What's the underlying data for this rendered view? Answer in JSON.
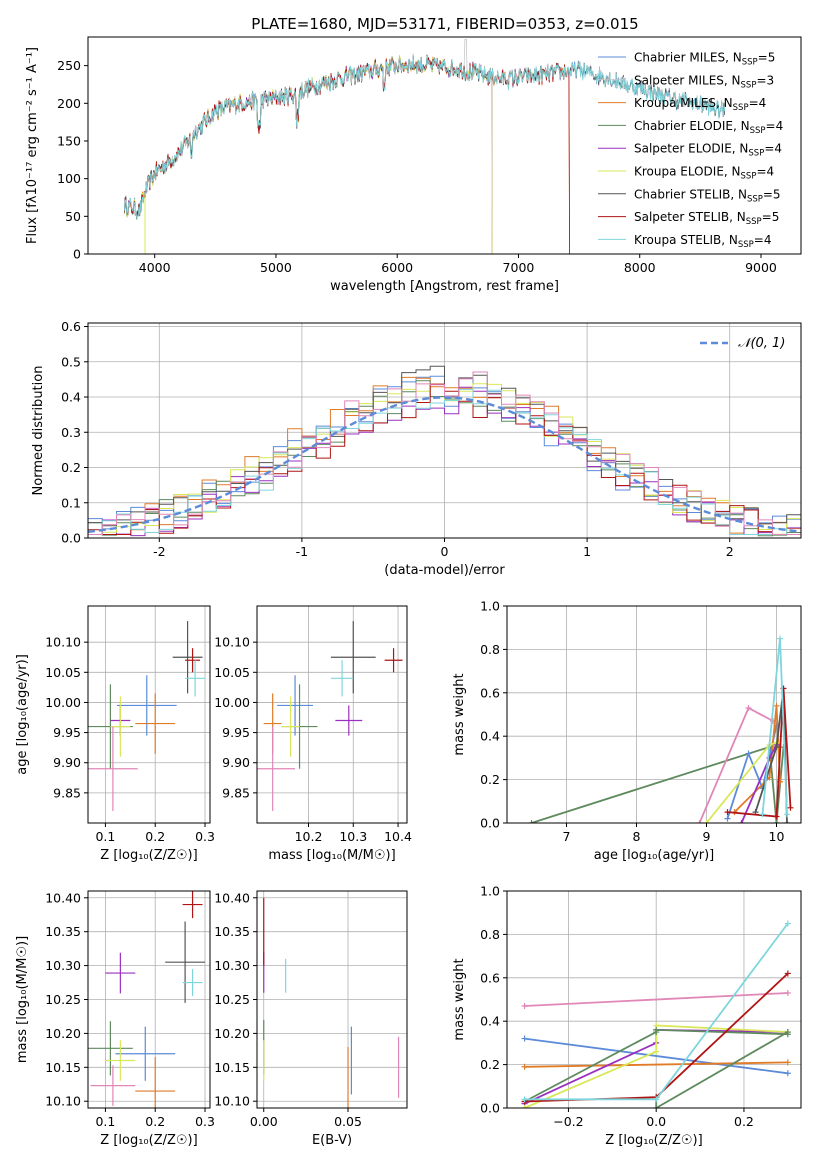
{
  "title": "PLATE=1680, MJD=53171, FIBERID=0353, z=0.015",
  "colors": {
    "chabrier_miles": "#5b8bd9",
    "salpeter_miles": "#c7c7c7",
    "kroupa_miles": "#e07b28",
    "chabrier_elodie": "#5e8a5e",
    "salpeter_elodie": "#9b30c0",
    "kroupa_elodie": "#d9e85a",
    "chabrier_stelib": "#555555",
    "salpeter_stelib": "#b01515",
    "kroupa_stelib": "#7ed6dc",
    "pink": "#e087b8",
    "normal_curve": "#5b8bd9",
    "grid": "#b0b0b0"
  },
  "chart_data": [
    {
      "id": "spectrum",
      "type": "line",
      "xlabel": "wavelength [Angstrom, rest frame]",
      "ylabel": "Flux [fλ10⁻¹⁷ erg cm⁻² s⁻¹ A⁻¹]",
      "xlim": [
        3450,
        9330
      ],
      "ylim": [
        0,
        288
      ],
      "xticks": [
        4000,
        5000,
        6000,
        7000,
        8000,
        9000
      ],
      "yticks": [
        0,
        50,
        100,
        150,
        200,
        250
      ],
      "grid": false,
      "legend_position": "top-right",
      "continuum": [
        [
          3750,
          65
        ],
        [
          3880,
          58
        ],
        [
          3920,
          82
        ],
        [
          4000,
          108
        ],
        [
          4100,
          120
        ],
        [
          4200,
          135
        ],
        [
          4350,
          165
        ],
        [
          4500,
          190
        ],
        [
          4700,
          200
        ],
        [
          4900,
          205
        ],
        [
          5100,
          210
        ],
        [
          5300,
          222
        ],
        [
          5500,
          232
        ],
        [
          5700,
          240
        ],
        [
          5900,
          248
        ],
        [
          6100,
          252
        ],
        [
          6300,
          250
        ],
        [
          6500,
          246
        ],
        [
          6700,
          238
        ],
        [
          6900,
          232
        ],
        [
          7100,
          236
        ],
        [
          7300,
          240
        ],
        [
          7500,
          244
        ],
        [
          7700,
          235
        ],
        [
          7900,
          225
        ],
        [
          8100,
          215
        ],
        [
          8300,
          205
        ],
        [
          8500,
          198
        ],
        [
          8700,
          190
        ]
      ],
      "series": [
        {
          "name": "Chabrier MILES, N",
          "sub": "SSP",
          "eq": "=5",
          "color": "#5b8bd9",
          "end": 8700
        },
        {
          "name": "Salpeter MILES, N",
          "sub": "SSP",
          "eq": "=3",
          "color": "#c7c7c7",
          "end": 8700
        },
        {
          "name": "Kroupa MILES, N",
          "sub": "SSP",
          "eq": "=4",
          "color": "#e07b28",
          "end": 7420
        },
        {
          "name": "Chabrier ELODIE, N",
          "sub": "SSP",
          "eq": "=4",
          "color": "#5e8a5e",
          "end": 6780
        },
        {
          "name": "Salpeter ELODIE, N",
          "sub": "SSP",
          "eq": "=4",
          "color": "#9b30c0",
          "end": 6780
        },
        {
          "name": "Kroupa ELODIE, N",
          "sub": "SSP",
          "eq": "=4",
          "color": "#d9e85a",
          "end": 6780
        },
        {
          "name": "Chabrier STELIB, N",
          "sub": "SSP",
          "eq": "=5",
          "color": "#555555",
          "end": 8700
        },
        {
          "name": "Salpeter STELIB, N",
          "sub": "SSP",
          "eq": "=5",
          "color": "#b01515",
          "end": 7420
        },
        {
          "name": "Kroupa STELIB, N",
          "sub": "SSP",
          "eq": "=4",
          "color": "#7ed6dc",
          "end": 8700
        }
      ]
    },
    {
      "id": "residuals",
      "type": "line",
      "xlabel": "(data-model)/error",
      "ylabel": "Normed distribution",
      "xlim": [
        -2.5,
        2.5
      ],
      "ylim": [
        0,
        0.61
      ],
      "xticks": [
        -2,
        -1,
        0,
        1,
        2
      ],
      "yticks": [
        0.0,
        0.1,
        0.2,
        0.3,
        0.4,
        0.5,
        0.6
      ],
      "grid": true,
      "legend": "𝒩(0, 1)",
      "legend_position": "top-right",
      "bin_width": 0.1,
      "histogram_colors": [
        "#5b8bd9",
        "#e07b28",
        "#5e8a5e",
        "#9b30c0",
        "#d9e85a",
        "#555555",
        "#b01515",
        "#7ed6dc",
        "#e087b8"
      ]
    },
    {
      "id": "age_vs_Z",
      "type": "scatter",
      "xlabel": "Z [log₁₀(Z/Z☉)]",
      "ylabel": "age  [log₁₀(age/yr)]",
      "xlim": [
        0.065,
        0.31
      ],
      "ylim": [
        9.8,
        10.16
      ],
      "xticks": [
        0.1,
        0.2,
        0.3
      ],
      "yticks": [
        9.85,
        9.9,
        9.95,
        10.0,
        10.05,
        10.1
      ],
      "grid": true,
      "points": [
        {
          "color": "#5b8bd9",
          "x": 0.183,
          "y": 9.995,
          "xe": 0.06,
          "ye": 0.05
        },
        {
          "color": "#e07b28",
          "x": 0.2,
          "y": 9.965,
          "xe": 0.04,
          "ye": 0.05
        },
        {
          "color": "#5e8a5e",
          "x": 0.11,
          "y": 9.96,
          "xe": 0.045,
          "ye": 0.07
        },
        {
          "color": "#9b30c0",
          "x": 0.13,
          "y": 9.97,
          "xe": 0.02,
          "ye": 0.025
        },
        {
          "color": "#d9e85a",
          "x": 0.13,
          "y": 9.96,
          "xe": 0.02,
          "ye": 0.05
        },
        {
          "color": "#555555",
          "x": 0.265,
          "y": 10.075,
          "xe": 0.03,
          "ye": 0.06
        },
        {
          "color": "#b01515",
          "x": 0.275,
          "y": 10.07,
          "xe": 0.015,
          "ye": 0.02
        },
        {
          "color": "#7ed6dc",
          "x": 0.28,
          "y": 10.04,
          "xe": 0.02,
          "ye": 0.03
        },
        {
          "color": "#e087b8",
          "x": 0.115,
          "y": 9.89,
          "xe": 0.05,
          "ye": 0.07
        }
      ]
    },
    {
      "id": "age_vs_mass",
      "type": "scatter",
      "xlabel": "mass [log₁₀(M/M☉)]",
      "ylabel": "",
      "xlim": [
        10.085,
        10.42
      ],
      "ylim": [
        9.8,
        10.16
      ],
      "xticks": [
        10.2,
        10.3,
        10.4
      ],
      "yticks": [
        9.85,
        9.9,
        9.95,
        10.0,
        10.05,
        10.1
      ],
      "grid": true,
      "points": [
        {
          "color": "#5b8bd9",
          "x": 10.17,
          "y": 9.995,
          "xe": 0.04,
          "ye": 0.05
        },
        {
          "color": "#e07b28",
          "x": 10.12,
          "y": 9.965,
          "xe": 0.02,
          "ye": 0.05
        },
        {
          "color": "#5e8a5e",
          "x": 10.18,
          "y": 9.96,
          "xe": 0.04,
          "ye": 0.07
        },
        {
          "color": "#9b30c0",
          "x": 10.29,
          "y": 9.97,
          "xe": 0.03,
          "ye": 0.025
        },
        {
          "color": "#d9e85a",
          "x": 10.16,
          "y": 9.96,
          "xe": 0.02,
          "ye": 0.05
        },
        {
          "color": "#555555",
          "x": 10.3,
          "y": 10.075,
          "xe": 0.05,
          "ye": 0.06
        },
        {
          "color": "#b01515",
          "x": 10.39,
          "y": 10.07,
          "xe": 0.02,
          "ye": 0.02
        },
        {
          "color": "#7ed6dc",
          "x": 10.275,
          "y": 10.04,
          "xe": 0.025,
          "ye": 0.03
        },
        {
          "color": "#e087b8",
          "x": 10.12,
          "y": 9.89,
          "xe": 0.05,
          "ye": 0.07
        }
      ]
    },
    {
      "id": "weight_vs_age",
      "type": "line",
      "xlabel": "age  [log₁₀(age/yr)]",
      "ylabel": "mass weight",
      "xlim": [
        6.15,
        10.35
      ],
      "ylim": [
        0,
        1.0
      ],
      "xticks": [
        7,
        8,
        9,
        10
      ],
      "yticks": [
        0.0,
        0.2,
        0.4,
        0.6,
        0.8,
        1.0
      ],
      "grid": true,
      "series": [
        {
          "color": "#5e8a5e",
          "points": [
            [
              6.5,
              0.0
            ],
            [
              9.9,
              0.35
            ],
            [
              10.0,
              0.0
            ],
            [
              10.1,
              0.35
            ]
          ]
        },
        {
          "color": "#e087b8",
          "points": [
            [
              8.9,
              0.0
            ],
            [
              9.6,
              0.53
            ],
            [
              9.95,
              0.47
            ]
          ]
        },
        {
          "color": "#5b8bd9",
          "points": [
            [
              9.3,
              0.02
            ],
            [
              9.6,
              0.32
            ],
            [
              9.8,
              0.16
            ],
            [
              10.0,
              0.45
            ]
          ]
        },
        {
          "color": "#e07b28",
          "points": [
            [
              9.4,
              0.05
            ],
            [
              9.9,
              0.21
            ],
            [
              10.0,
              0.54
            ],
            [
              10.05,
              0.19
            ]
          ]
        },
        {
          "color": "#9b30c0",
          "points": [
            [
              9.5,
              0.0
            ],
            [
              9.9,
              0.3
            ],
            [
              10.0,
              0.36
            ]
          ]
        },
        {
          "color": "#d9e85a",
          "points": [
            [
              9.0,
              0.0
            ],
            [
              9.9,
              0.36
            ],
            [
              10.0,
              0.37
            ]
          ]
        },
        {
          "color": "#555555",
          "points": [
            [
              9.7,
              0.05
            ],
            [
              10.0,
              0.35
            ],
            [
              10.1,
              0.62
            ],
            [
              10.15,
              0.0
            ]
          ]
        },
        {
          "color": "#b01515",
          "points": [
            [
              9.3,
              0.05
            ],
            [
              10.0,
              0.03
            ],
            [
              10.1,
              0.62
            ],
            [
              10.2,
              0.07
            ]
          ]
        },
        {
          "color": "#7ed6dc",
          "points": [
            [
              9.8,
              0.04
            ],
            [
              10.05,
              0.85
            ],
            [
              10.15,
              0.04
            ]
          ]
        }
      ]
    },
    {
      "id": "mass_vs_Z",
      "type": "scatter",
      "xlabel": "Z [log₁₀(Z/Z☉)]",
      "ylabel": "mass [log₁₀(M/M☉)]",
      "xlim": [
        0.065,
        0.31
      ],
      "ylim": [
        10.09,
        10.41
      ],
      "xticks": [
        0.1,
        0.2,
        0.3
      ],
      "yticks": [
        10.1,
        10.15,
        10.2,
        10.25,
        10.3,
        10.35,
        10.4
      ],
      "grid": true,
      "points": [
        {
          "color": "#5b8bd9",
          "x": 0.18,
          "y": 10.17,
          "xe": 0.06,
          "ye": 0.04
        },
        {
          "color": "#e07b28",
          "x": 0.2,
          "y": 10.115,
          "xe": 0.04,
          "ye": 0.05
        },
        {
          "color": "#5e8a5e",
          "x": 0.11,
          "y": 10.178,
          "xe": 0.045,
          "ye": 0.04
        },
        {
          "color": "#9b30c0",
          "x": 0.13,
          "y": 10.289,
          "xe": 0.03,
          "ye": 0.03
        },
        {
          "color": "#d9e85a",
          "x": 0.13,
          "y": 10.16,
          "xe": 0.03,
          "ye": 0.03
        },
        {
          "color": "#555555",
          "x": 0.26,
          "y": 10.305,
          "xe": 0.04,
          "ye": 0.06
        },
        {
          "color": "#b01515",
          "x": 0.275,
          "y": 10.39,
          "xe": 0.02,
          "ye": 0.02
        },
        {
          "color": "#7ed6dc",
          "x": 0.275,
          "y": 10.275,
          "xe": 0.02,
          "ye": 0.02
        },
        {
          "color": "#e087b8",
          "x": 0.115,
          "y": 10.123,
          "xe": 0.045,
          "ye": 0.03
        }
      ]
    },
    {
      "id": "mass_vs_ebv",
      "type": "scatter",
      "xlabel": "E(B-V)",
      "ylabel": "",
      "xlim": [
        -0.004,
        0.085
      ],
      "ylim": [
        10.09,
        10.41
      ],
      "xticks": [
        0.0,
        0.05
      ],
      "yticks": [
        10.1,
        10.15,
        10.2,
        10.25,
        10.3,
        10.35,
        10.4
      ],
      "grid": true,
      "points": [
        {
          "color": "#5b8bd9",
          "x": 0.052,
          "y": 10.16,
          "xe": 0,
          "ye": 0.05
        },
        {
          "color": "#e07b28",
          "x": 0.05,
          "y": 10.13,
          "xe": 0,
          "ye": 0.05
        },
        {
          "color": "#5e8a5e",
          "x": 0.0,
          "y": 10.18,
          "xe": 0,
          "ye": 0.04
        },
        {
          "color": "#9b30c0",
          "x": 0.0,
          "y": 10.29,
          "xe": 0,
          "ye": 0.03
        },
        {
          "color": "#d9e85a",
          "x": 0.0,
          "y": 10.16,
          "xe": 0,
          "ye": 0.03
        },
        {
          "color": "#b01515",
          "x": 0.0,
          "y": 10.35,
          "xe": 0,
          "ye": 0.05
        },
        {
          "color": "#7ed6dc",
          "x": 0.013,
          "y": 10.285,
          "xe": 0,
          "ye": 0.025
        },
        {
          "color": "#e087b8",
          "x": 0.08,
          "y": 10.15,
          "xe": 0,
          "ye": 0.045
        }
      ]
    },
    {
      "id": "weight_vs_Z",
      "type": "line",
      "xlabel": "Z [log₁₀(Z/Z☉)]",
      "ylabel": "mass weight",
      "xlim": [
        -0.34,
        0.33
      ],
      "ylim": [
        0,
        1.0
      ],
      "xticks": [
        -0.2,
        0.0,
        0.2
      ],
      "yticks": [
        0.0,
        0.2,
        0.4,
        0.6,
        0.8,
        1.0
      ],
      "grid": true,
      "series": [
        {
          "color": "#e087b8",
          "points": [
            [
              -0.3,
              0.47
            ],
            [
              0.3,
              0.53
            ]
          ]
        },
        {
          "color": "#5b8bd9",
          "points": [
            [
              -0.3,
              0.32
            ],
            [
              0.3,
              0.16
            ]
          ]
        },
        {
          "color": "#e07b28",
          "points": [
            [
              -0.3,
              0.19
            ],
            [
              0.3,
              0.21
            ]
          ]
        },
        {
          "color": "#9b30c0",
          "points": [
            [
              -0.3,
              0.02
            ],
            [
              0.0,
              0.3
            ],
            [
              0.0,
              0.36
            ],
            [
              0.3,
              0.35
            ]
          ]
        },
        {
          "color": "#d9e85a",
          "points": [
            [
              -0.3,
              0.0
            ],
            [
              0.0,
              0.26
            ],
            [
              0.0,
              0.38
            ],
            [
              0.3,
              0.35
            ]
          ]
        },
        {
          "color": "#5e8a5e",
          "points": [
            [
              -0.3,
              0.03
            ],
            [
              0.0,
              0.35
            ],
            [
              0.0,
              0.36
            ],
            [
              0.3,
              0.34
            ]
          ]
        },
        {
          "color": "#5e8a5e",
          "points": [
            [
              0.0,
              0.05
            ],
            [
              0.0,
              0.0
            ],
            [
              0.3,
              0.35
            ]
          ]
        },
        {
          "color": "#b01515",
          "points": [
            [
              -0.3,
              0.03
            ],
            [
              0.0,
              0.05
            ],
            [
              0.3,
              0.62
            ]
          ]
        },
        {
          "color": "#7ed6dc",
          "points": [
            [
              -0.3,
              0.04
            ],
            [
              0.0,
              0.04
            ],
            [
              0.3,
              0.85
            ]
          ]
        }
      ]
    }
  ]
}
